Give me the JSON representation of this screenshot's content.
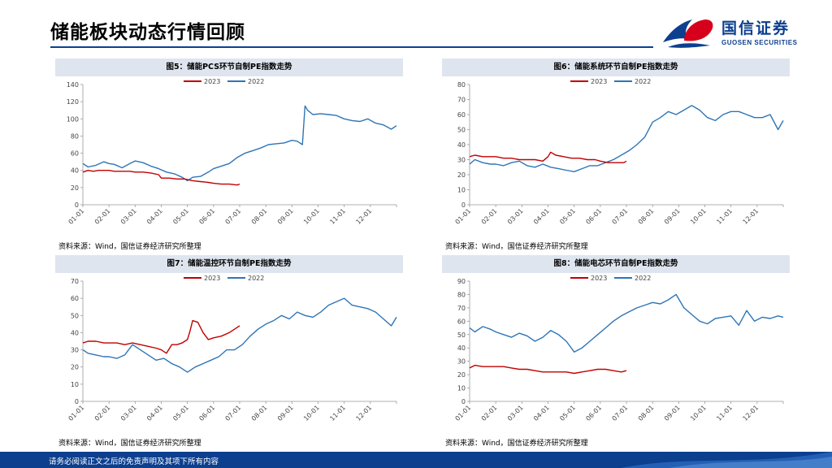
{
  "header": {
    "title": "储能板块动态行情回顾",
    "logo_name": "国信证券",
    "logo_sub": "GUOSEN SECURITIES",
    "accent": "#0d3f8f"
  },
  "footer": {
    "disclaimer": "请务必阅读正文之后的免责声明及其项下所有内容"
  },
  "colors": {
    "series_2023": "#c00000",
    "series_2022": "#2e75b6",
    "axis": "#999999"
  },
  "chart_data": [
    {
      "type": "line",
      "title": "图5：储能PCS环节自制PE指数走势",
      "source": "资料来源：Wind，国信证券经济研究所整理",
      "xlabel": "",
      "ylabel": "",
      "categories": [
        "01-01",
        "02-01",
        "03-01",
        "04-01",
        "05-01",
        "06-01",
        "07-01",
        "08-01",
        "09-01",
        "10-01",
        "11-01",
        "12-01"
      ],
      "x_range": [
        0,
        12
      ],
      "ylim": [
        0,
        140
      ],
      "yticks": [
        0,
        20,
        40,
        60,
        80,
        100,
        120,
        140
      ],
      "legend": [
        "2023",
        "2022"
      ],
      "series": [
        {
          "name": "2023",
          "color": "#c00000",
          "x": [
            0,
            0.2,
            0.4,
            0.6,
            0.8,
            1.0,
            1.2,
            1.5,
            1.8,
            2.0,
            2.3,
            2.6,
            2.9,
            3.0,
            3.3,
            3.6,
            3.9,
            4.2,
            4.5,
            4.8,
            5.0,
            5.3,
            5.6,
            5.9,
            6.0
          ],
          "values": [
            38,
            40,
            39,
            40,
            40,
            40,
            39,
            39,
            39,
            38,
            38,
            37,
            35,
            31,
            31,
            30,
            30,
            28,
            27,
            26,
            25,
            24,
            24,
            23,
            24
          ]
        },
        {
          "name": "2022",
          "color": "#2e75b6",
          "x": [
            0,
            0.2,
            0.5,
            0.8,
            1.0,
            1.2,
            1.5,
            1.8,
            2.0,
            2.3,
            2.6,
            2.9,
            3.2,
            3.5,
            3.8,
            4.0,
            4.2,
            4.5,
            4.8,
            5.0,
            5.3,
            5.6,
            5.9,
            6.2,
            6.5,
            6.8,
            7.1,
            7.4,
            7.7,
            8.0,
            8.2,
            8.4,
            8.5,
            8.6,
            8.8,
            9.1,
            9.4,
            9.7,
            10.0,
            10.3,
            10.6,
            10.9,
            11.2,
            11.5,
            11.8,
            12.0
          ],
          "values": [
            48,
            44,
            46,
            50,
            48,
            47,
            43,
            48,
            51,
            49,
            45,
            42,
            38,
            36,
            32,
            28,
            32,
            33,
            38,
            42,
            45,
            48,
            55,
            60,
            63,
            66,
            70,
            71,
            72,
            75,
            74,
            70,
            115,
            110,
            105,
            106,
            105,
            104,
            100,
            98,
            97,
            100,
            95,
            93,
            88,
            92
          ]
        }
      ]
    },
    {
      "type": "line",
      "title": "图6：储能系统环节自制PE指数走势",
      "source": "资料来源：Wind，国信证券经济研究所整理",
      "xlabel": "",
      "ylabel": "",
      "categories": [
        "01-01",
        "02-01",
        "03-01",
        "04-01",
        "05-01",
        "06-01",
        "07-01",
        "08-01",
        "09-01",
        "10-01",
        "11-01",
        "12-01"
      ],
      "x_range": [
        0,
        12
      ],
      "ylim": [
        0,
        80
      ],
      "yticks": [
        0,
        10,
        20,
        30,
        40,
        50,
        60,
        70,
        80
      ],
      "legend": [
        "2023",
        "2022"
      ],
      "series": [
        {
          "name": "2023",
          "color": "#c00000",
          "x": [
            0,
            0.2,
            0.5,
            0.8,
            1.0,
            1.3,
            1.6,
            1.9,
            2.2,
            2.5,
            2.8,
            3.0,
            3.1,
            3.3,
            3.6,
            3.9,
            4.2,
            4.5,
            4.8,
            5.0,
            5.3,
            5.6,
            5.9,
            6.0
          ],
          "values": [
            32,
            33,
            32,
            32,
            32,
            31,
            31,
            30,
            30,
            30,
            29,
            32,
            35,
            33,
            32,
            31,
            31,
            30,
            30,
            29,
            28,
            28,
            28,
            29
          ]
        },
        {
          "name": "2022",
          "color": "#2e75b6",
          "x": [
            0,
            0.2,
            0.5,
            0.8,
            1.0,
            1.3,
            1.6,
            1.9,
            2.2,
            2.5,
            2.8,
            3.1,
            3.4,
            3.7,
            4.0,
            4.3,
            4.6,
            4.9,
            5.2,
            5.5,
            5.8,
            6.1,
            6.4,
            6.7,
            7.0,
            7.3,
            7.6,
            7.9,
            8.2,
            8.5,
            8.8,
            9.1,
            9.4,
            9.7,
            10.0,
            10.3,
            10.6,
            10.9,
            11.2,
            11.5,
            11.8,
            12.0
          ],
          "values": [
            27,
            30,
            28,
            27,
            27,
            26,
            28,
            29,
            26,
            25,
            27,
            25,
            24,
            23,
            22,
            24,
            26,
            26,
            28,
            30,
            33,
            36,
            40,
            45,
            55,
            58,
            62,
            60,
            63,
            66,
            63,
            58,
            56,
            60,
            62,
            62,
            60,
            58,
            58,
            60,
            50,
            56
          ]
        }
      ]
    },
    {
      "type": "line",
      "title": "图7：储能温控环节自制PE指数走势",
      "source": "资料来源：Wind，国信证券经济研究所整理",
      "xlabel": "",
      "ylabel": "",
      "categories": [
        "01-01",
        "02-01",
        "03-01",
        "04-01",
        "05-01",
        "06-01",
        "07-01",
        "08-01",
        "09-01",
        "10-01",
        "11-01",
        "12-01"
      ],
      "x_range": [
        0,
        12
      ],
      "ylim": [
        0,
        70
      ],
      "yticks": [
        0,
        10,
        20,
        30,
        40,
        50,
        60,
        70
      ],
      "legend": [
        "2023",
        "2022"
      ],
      "series": [
        {
          "name": "2023",
          "color": "#c00000",
          "x": [
            0,
            0.2,
            0.5,
            0.8,
            1.0,
            1.3,
            1.6,
            1.9,
            2.2,
            2.5,
            2.8,
            3.0,
            3.2,
            3.4,
            3.6,
            3.8,
            4.0,
            4.1,
            4.2,
            4.4,
            4.6,
            4.8,
            5.0,
            5.3,
            5.6,
            5.9,
            6.0
          ],
          "values": [
            34,
            35,
            35,
            34,
            34,
            34,
            33,
            34,
            33,
            32,
            31,
            30,
            28,
            33,
            33,
            34,
            36,
            41,
            47,
            46,
            40,
            36,
            37,
            38,
            40,
            43,
            44
          ]
        },
        {
          "name": "2022",
          "color": "#2e75b6",
          "x": [
            0,
            0.2,
            0.5,
            0.8,
            1.0,
            1.3,
            1.6,
            1.9,
            2.2,
            2.5,
            2.8,
            3.1,
            3.4,
            3.7,
            4.0,
            4.3,
            4.6,
            4.9,
            5.2,
            5.5,
            5.8,
            6.1,
            6.4,
            6.7,
            7.0,
            7.3,
            7.6,
            7.9,
            8.2,
            8.5,
            8.8,
            9.1,
            9.4,
            9.7,
            10.0,
            10.3,
            10.6,
            10.9,
            11.2,
            11.5,
            11.8,
            12.0
          ],
          "values": [
            30,
            28,
            27,
            26,
            26,
            25,
            27,
            33,
            30,
            27,
            24,
            25,
            22,
            20,
            17,
            20,
            22,
            24,
            26,
            30,
            30,
            33,
            38,
            42,
            45,
            47,
            50,
            48,
            52,
            50,
            49,
            52,
            56,
            58,
            60,
            56,
            55,
            54,
            52,
            48,
            44,
            49
          ]
        }
      ]
    },
    {
      "type": "line",
      "title": "图8：储能电芯环节自制PE指数走势",
      "source": "资料来源：Wind，国信证券经济研究所整理",
      "xlabel": "",
      "ylabel": "",
      "categories": [
        "01-01",
        "02-01",
        "03-01",
        "04-01",
        "05-01",
        "06-01",
        "07-01",
        "08-01",
        "09-01",
        "10-01",
        "11-01",
        "12-01"
      ],
      "x_range": [
        0,
        12
      ],
      "ylim": [
        0,
        90
      ],
      "yticks": [
        0,
        10,
        20,
        30,
        40,
        50,
        60,
        70,
        80,
        90
      ],
      "legend": [
        "2023",
        "2022"
      ],
      "series": [
        {
          "name": "2023",
          "color": "#c00000",
          "x": [
            0,
            0.2,
            0.5,
            0.8,
            1.0,
            1.3,
            1.6,
            1.9,
            2.2,
            2.5,
            2.8,
            3.1,
            3.4,
            3.7,
            4.0,
            4.3,
            4.6,
            4.9,
            5.2,
            5.5,
            5.8,
            6.0
          ],
          "values": [
            25,
            27,
            26,
            26,
            26,
            26,
            25,
            24,
            24,
            23,
            22,
            22,
            22,
            22,
            21,
            22,
            23,
            24,
            24,
            23,
            22,
            23
          ]
        },
        {
          "name": "2022",
          "color": "#2e75b6",
          "x": [
            0,
            0.2,
            0.5,
            0.8,
            1.0,
            1.3,
            1.6,
            1.9,
            2.2,
            2.5,
            2.8,
            3.1,
            3.4,
            3.7,
            4.0,
            4.3,
            4.6,
            4.9,
            5.2,
            5.5,
            5.8,
            6.1,
            6.4,
            6.7,
            7.0,
            7.3,
            7.6,
            7.9,
            8.2,
            8.5,
            8.8,
            9.1,
            9.4,
            9.7,
            10.0,
            10.3,
            10.6,
            10.9,
            11.2,
            11.5,
            11.8,
            12.0
          ],
          "values": [
            55,
            52,
            56,
            54,
            52,
            50,
            48,
            51,
            49,
            45,
            48,
            53,
            50,
            45,
            37,
            40,
            45,
            50,
            55,
            60,
            64,
            67,
            70,
            72,
            74,
            73,
            76,
            80,
            70,
            65,
            60,
            58,
            62,
            63,
            64,
            57,
            68,
            60,
            63,
            62,
            64,
            63
          ]
        }
      ]
    }
  ]
}
